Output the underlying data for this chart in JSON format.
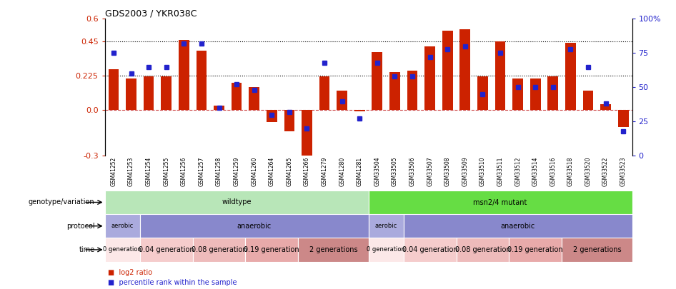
{
  "title": "GDS2003 / YKR038C",
  "samples": [
    "GSM41252",
    "GSM41253",
    "GSM41254",
    "GSM41255",
    "GSM41256",
    "GSM41257",
    "GSM41258",
    "GSM41259",
    "GSM41260",
    "GSM41264",
    "GSM41265",
    "GSM41266",
    "GSM41279",
    "GSM41280",
    "GSM41281",
    "GSM33504",
    "GSM33505",
    "GSM33506",
    "GSM33507",
    "GSM33508",
    "GSM33509",
    "GSM33510",
    "GSM33511",
    "GSM33512",
    "GSM33514",
    "GSM33516",
    "GSM33518",
    "GSM33520",
    "GSM33522",
    "GSM33523"
  ],
  "log2_ratio": [
    0.27,
    0.21,
    0.22,
    0.22,
    0.46,
    0.39,
    0.03,
    0.18,
    0.15,
    -0.08,
    -0.14,
    -0.32,
    0.22,
    0.13,
    -0.01,
    0.38,
    0.25,
    0.26,
    0.42,
    0.52,
    0.53,
    0.22,
    0.45,
    0.21,
    0.21,
    0.22,
    0.44,
    0.13,
    0.04,
    -0.11
  ],
  "percentile": [
    75,
    60,
    65,
    65,
    82,
    82,
    35,
    52,
    48,
    30,
    32,
    20,
    68,
    40,
    27,
    68,
    58,
    58,
    72,
    78,
    80,
    45,
    75,
    50,
    50,
    50,
    78,
    65,
    38,
    18
  ],
  "ylim_left": [
    -0.3,
    0.6
  ],
  "ylim_right": [
    0,
    100
  ],
  "yticks_left": [
    -0.3,
    0.0,
    0.225,
    0.45,
    0.6
  ],
  "yticks_right": [
    0,
    25,
    50,
    75,
    100
  ],
  "hlines": [
    0.225,
    0.45
  ],
  "bar_color": "#cc2200",
  "dot_color": "#2222cc",
  "zero_line_color": "#cc4444",
  "background_color": "#ffffff",
  "genotype_row": [
    {
      "label": "wildtype",
      "start": 0,
      "end": 15,
      "color": "#b8e6b8"
    },
    {
      "label": "msn2/4 mutant",
      "start": 15,
      "end": 30,
      "color": "#66dd44"
    }
  ],
  "protocol_row": [
    {
      "label": "aerobic",
      "start": 0,
      "end": 2,
      "color": "#aaaadd"
    },
    {
      "label": "anaerobic",
      "start": 2,
      "end": 15,
      "color": "#8888cc"
    },
    {
      "label": "aerobic",
      "start": 15,
      "end": 17,
      "color": "#aaaadd"
    },
    {
      "label": "anaerobic",
      "start": 17,
      "end": 30,
      "color": "#8888cc"
    }
  ],
  "time_row": [
    {
      "label": "0 generation",
      "start": 0,
      "end": 2,
      "color": "#fce8e8"
    },
    {
      "label": "0.04 generation",
      "start": 2,
      "end": 5,
      "color": "#f5cccc"
    },
    {
      "label": "0.08 generation",
      "start": 5,
      "end": 8,
      "color": "#eebbbb"
    },
    {
      "label": "0.19 generation",
      "start": 8,
      "end": 11,
      "color": "#e8aaaa"
    },
    {
      "label": "2 generations",
      "start": 11,
      "end": 15,
      "color": "#cc8888"
    },
    {
      "label": "0 generation",
      "start": 15,
      "end": 17,
      "color": "#fce8e8"
    },
    {
      "label": "0.04 generation",
      "start": 17,
      "end": 20,
      "color": "#f5cccc"
    },
    {
      "label": "0.08 generation",
      "start": 20,
      "end": 23,
      "color": "#eebbbb"
    },
    {
      "label": "0.19 generation",
      "start": 23,
      "end": 26,
      "color": "#e8aaaa"
    },
    {
      "label": "2 generations",
      "start": 26,
      "end": 30,
      "color": "#cc8888"
    }
  ],
  "row_labels": [
    "genotype/variation",
    "protocol",
    "time"
  ],
  "legend": [
    {
      "label": "log2 ratio",
      "color": "#cc2200"
    },
    {
      "label": "percentile rank within the sample",
      "color": "#2222cc"
    }
  ]
}
